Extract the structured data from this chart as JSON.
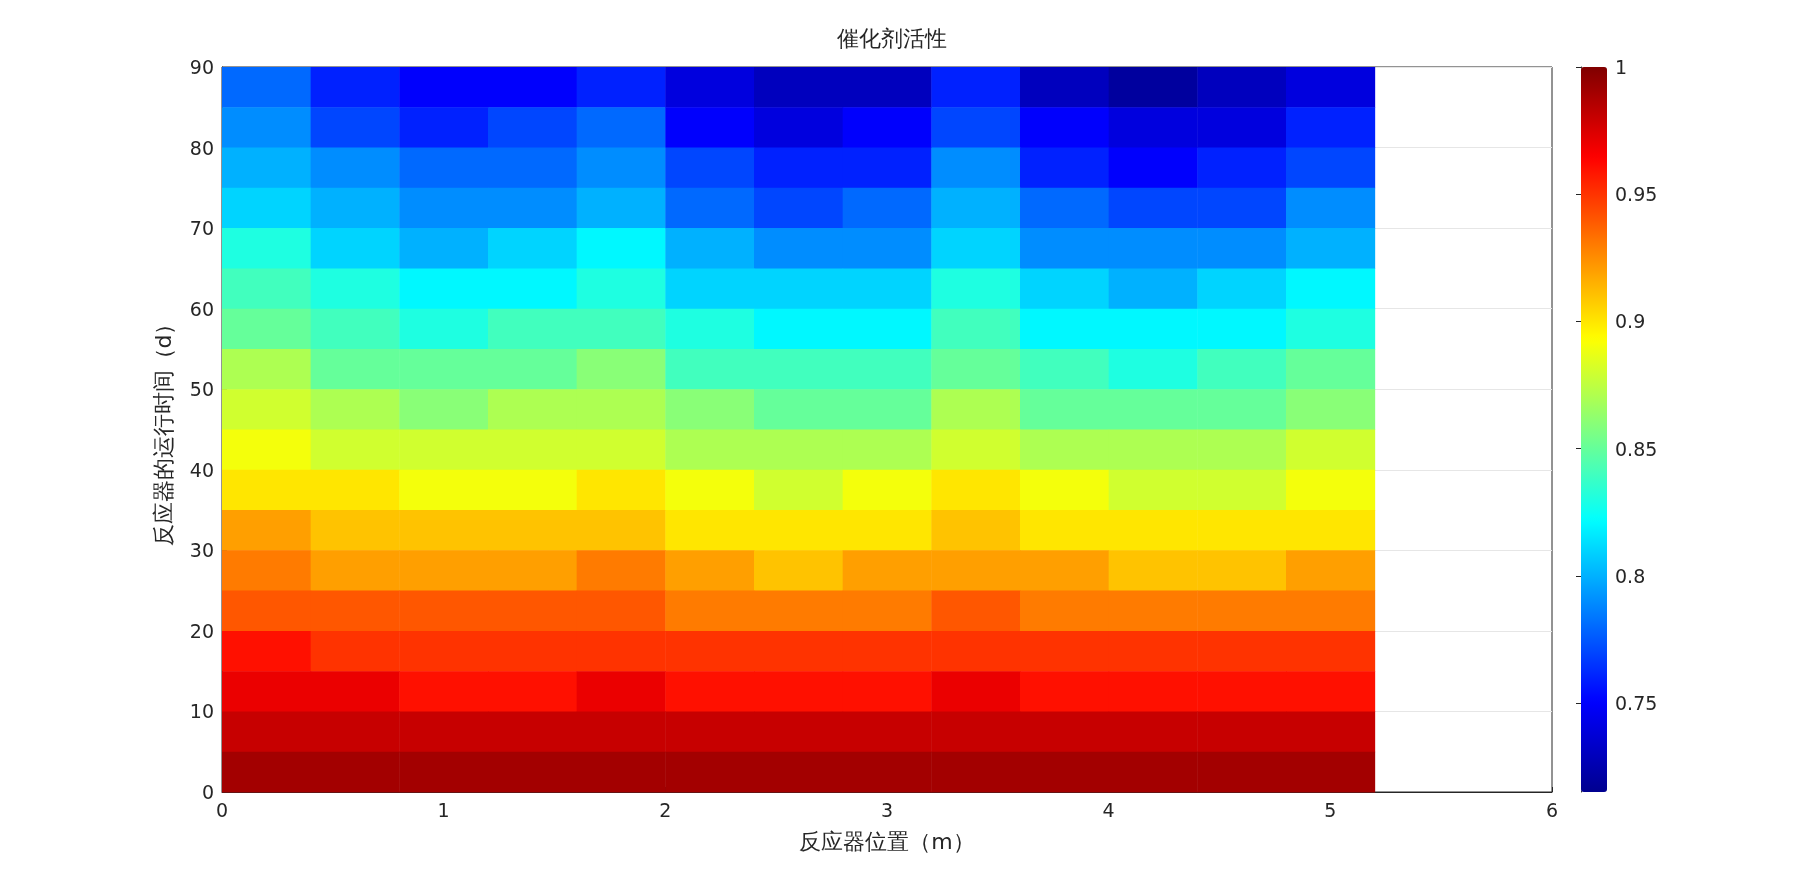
{
  "chart_data": {
    "type": "heatmap",
    "title": "催化剂活性",
    "xlabel": "反应器位置（m）",
    "ylabel": "反应器的运行时间（d）",
    "x": [
      0.2,
      0.6,
      1.0,
      1.4,
      1.8,
      2.2,
      2.6,
      3.0,
      3.4,
      3.8,
      4.2,
      4.6,
      5.0
    ],
    "y": [
      87.5,
      82.5,
      77.5,
      72.5,
      67.5,
      62.5,
      57.5,
      52.5,
      47.5,
      42.5,
      37.5,
      32.5,
      27.5,
      22.5,
      17.5,
      12.5,
      7.5,
      2.5
    ],
    "cells": [
      [
        0.78,
        0.76,
        0.75,
        0.75,
        0.76,
        0.74,
        0.73,
        0.73,
        0.76,
        0.73,
        0.72,
        0.73,
        0.74
      ],
      [
        0.79,
        0.77,
        0.76,
        0.77,
        0.78,
        0.75,
        0.74,
        0.75,
        0.77,
        0.75,
        0.74,
        0.74,
        0.76
      ],
      [
        0.8,
        0.79,
        0.78,
        0.78,
        0.79,
        0.77,
        0.76,
        0.76,
        0.79,
        0.76,
        0.75,
        0.76,
        0.77
      ],
      [
        0.81,
        0.8,
        0.79,
        0.79,
        0.8,
        0.78,
        0.77,
        0.78,
        0.8,
        0.78,
        0.77,
        0.77,
        0.79
      ],
      [
        0.83,
        0.81,
        0.8,
        0.81,
        0.82,
        0.8,
        0.79,
        0.79,
        0.81,
        0.79,
        0.79,
        0.79,
        0.8
      ],
      [
        0.84,
        0.83,
        0.82,
        0.82,
        0.83,
        0.81,
        0.81,
        0.81,
        0.83,
        0.81,
        0.8,
        0.81,
        0.82
      ],
      [
        0.85,
        0.84,
        0.83,
        0.84,
        0.84,
        0.83,
        0.82,
        0.82,
        0.84,
        0.82,
        0.82,
        0.82,
        0.83
      ],
      [
        0.87,
        0.85,
        0.85,
        0.85,
        0.86,
        0.84,
        0.84,
        0.84,
        0.85,
        0.84,
        0.83,
        0.84,
        0.85
      ],
      [
        0.88,
        0.87,
        0.86,
        0.87,
        0.87,
        0.86,
        0.85,
        0.85,
        0.87,
        0.85,
        0.85,
        0.85,
        0.86
      ],
      [
        0.89,
        0.88,
        0.88,
        0.88,
        0.88,
        0.87,
        0.87,
        0.87,
        0.88,
        0.87,
        0.87,
        0.87,
        0.88
      ],
      [
        0.9,
        0.9,
        0.89,
        0.89,
        0.9,
        0.89,
        0.88,
        0.89,
        0.9,
        0.89,
        0.88,
        0.88,
        0.89
      ],
      [
        0.92,
        0.91,
        0.91,
        0.91,
        0.91,
        0.9,
        0.9,
        0.9,
        0.91,
        0.9,
        0.9,
        0.9,
        0.9
      ],
      [
        0.93,
        0.92,
        0.92,
        0.92,
        0.93,
        0.92,
        0.91,
        0.92,
        0.92,
        0.92,
        0.91,
        0.91,
        0.92
      ],
      [
        0.94,
        0.94,
        0.94,
        0.94,
        0.94,
        0.93,
        0.93,
        0.93,
        0.94,
        0.93,
        0.93,
        0.93,
        0.93
      ],
      [
        0.96,
        0.95,
        0.95,
        0.95,
        0.95,
        0.95,
        0.95,
        0.95,
        0.95,
        0.95,
        0.95,
        0.95,
        0.95
      ],
      [
        0.97,
        0.97,
        0.96,
        0.96,
        0.97,
        0.96,
        0.96,
        0.96,
        0.97,
        0.96,
        0.96,
        0.96,
        0.96
      ],
      [
        0.98,
        0.98,
        0.98,
        0.98,
        0.98,
        0.98,
        0.98,
        0.98,
        0.98,
        0.98,
        0.98,
        0.98,
        0.98
      ],
      [
        0.99,
        0.99,
        0.99,
        0.99,
        0.99,
        0.99,
        0.99,
        0.99,
        0.99,
        0.99,
        0.99,
        0.99,
        0.99
      ]
    ],
    "xlim": [
      0,
      6
    ],
    "xticks": [
      0,
      1,
      2,
      3,
      4,
      5,
      6
    ],
    "ylim": [
      0,
      90
    ],
    "yticks": [
      0,
      10,
      20,
      30,
      40,
      50,
      60,
      70,
      80,
      90
    ],
    "clim": [
      0.715,
      1
    ],
    "cticks": [
      0.75,
      0.8,
      0.85,
      0.9,
      0.95,
      1
    ],
    "grid": "y"
  }
}
